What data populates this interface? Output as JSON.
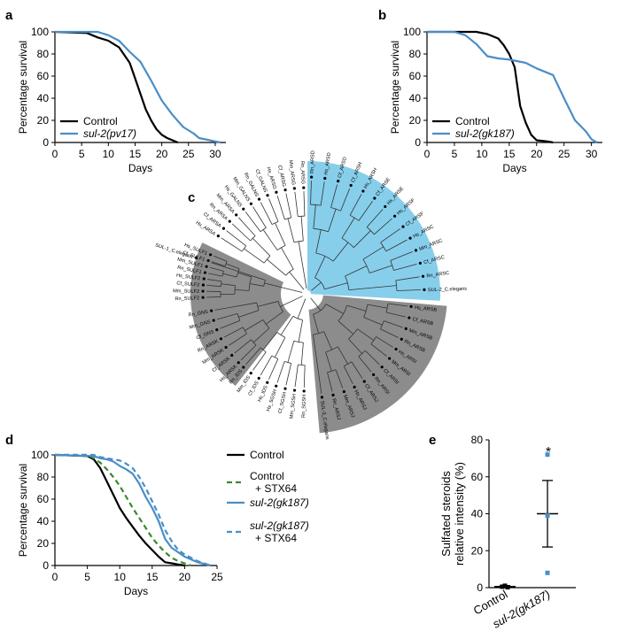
{
  "panels": {
    "a": "a",
    "b": "b",
    "c": "c",
    "d": "d",
    "e": "e"
  },
  "chart_data": [
    {
      "panel": "a",
      "type": "line",
      "xlabel": "Days",
      "ylabel": "Percentage survival",
      "xlim": [
        0,
        32
      ],
      "ylim": [
        0,
        100
      ],
      "xticks": [
        0,
        5,
        10,
        15,
        20,
        25,
        30
      ],
      "yticks": [
        0,
        20,
        40,
        60,
        80,
        100
      ],
      "legend_position": "lower-left",
      "series": [
        {
          "name": "Control",
          "color": "#000000",
          "x": [
            0,
            6,
            8,
            10,
            12,
            14,
            15,
            16,
            17,
            18,
            19,
            20,
            21,
            22,
            23
          ],
          "y": [
            100,
            99,
            95,
            92,
            86,
            72,
            58,
            44,
            30,
            20,
            12,
            7,
            4,
            2,
            0
          ]
        },
        {
          "name": "sul-2(pv17)",
          "color": "#4a8ec7",
          "x": [
            0,
            8,
            10,
            12,
            14,
            16,
            18,
            19,
            20,
            22,
            24,
            26,
            27,
            29,
            30,
            31
          ],
          "y": [
            100,
            100,
            97,
            92,
            82,
            73,
            56,
            47,
            38,
            25,
            14,
            8,
            4,
            2,
            1,
            0
          ]
        }
      ]
    },
    {
      "panel": "b",
      "type": "line",
      "xlabel": "Days",
      "ylabel": "Percentage survival",
      "xlim": [
        0,
        32
      ],
      "ylim": [
        0,
        100
      ],
      "xticks": [
        0,
        5,
        10,
        15,
        20,
        25,
        30
      ],
      "yticks": [
        0,
        20,
        40,
        60,
        80,
        100
      ],
      "legend_position": "lower-left",
      "series": [
        {
          "name": "Control",
          "color": "#000000",
          "x": [
            0,
            9,
            11,
            13,
            14,
            15,
            16,
            17,
            18,
            19,
            20,
            22,
            23
          ],
          "y": [
            100,
            100,
            98,
            94,
            88,
            80,
            68,
            33,
            18,
            7,
            2,
            1,
            0
          ]
        },
        {
          "name": "sul-2(gk187)",
          "color": "#4a8ec7",
          "x": [
            0,
            5,
            7,
            9,
            11,
            13,
            15,
            16,
            18,
            20,
            22,
            23,
            25,
            27,
            29,
            30,
            31
          ],
          "y": [
            100,
            100,
            97,
            89,
            78,
            76,
            75,
            74,
            72,
            67,
            63,
            61,
            40,
            20,
            10,
            3,
            0
          ]
        }
      ]
    },
    {
      "panel": "c",
      "type": "tree",
      "title": "",
      "blue_clade": [
        "Rn_ARSD",
        "Hs_ARSD",
        "Cf_ARSD",
        "Cf_ARSH",
        "Hs_ARSH",
        "Cf_ARSE",
        "Hs_ARSE",
        "Hs_ARSF",
        "Cf_ARSF",
        "Hs_ARSC",
        "Mm_ARSC",
        "Cf_ARSC",
        "Rn_ARSC",
        "SUL-2_C.elegans"
      ],
      "right_grey_clade": [
        "Hs_ARSB",
        "Cf_ARSB",
        "Mm_ARSB",
        "Rn_ARSB",
        "Hs_ARSI",
        "Mm_ARSI",
        "Cf_ARSI",
        "Rn_ARSI",
        "Cf_ARSJ",
        "Hs_ARSJ",
        "Mm_ARSJ",
        "Rn_ARSJ",
        "SUL-3_C.elegans"
      ],
      "left_grey_clade": [
        "SUL-1_C.elegans",
        "Rn_SULF2",
        "Mm_SULF2",
        "Cf_SULF2",
        "Hs_SULF2",
        "Rn_SULF1",
        "Mm_SULF1",
        "Cf_SULF1",
        "Hs_SULF1"
      ],
      "white_leaves": [
        "Rn_SGSH",
        "Mm_SGSH",
        "Cf_SGSH",
        "Hs_SGSH",
        "Hs_IDS",
        "Cf_IDS",
        "Mm_IDS",
        "Rn_IDS",
        "Hs_ARSK",
        "Cf_ARSK",
        "Mm_ARSK",
        "Rn_ARSK",
        "Cf_GNS",
        "Mm_GNS",
        "Rn_GNS",
        "Hs_ARSA",
        "Cf_ARSA",
        "Rn_ARSA",
        "Mm_ARSA",
        "Hs_GALNS",
        "Mm_GALNS",
        "Rn_GALNS",
        "Cf_GALNS",
        "Hs_ARSG",
        "Cf_ARSG",
        "Mm_ARSG",
        "Rn_ARSG"
      ]
    },
    {
      "panel": "d",
      "type": "line",
      "xlabel": "Days",
      "ylabel": "Percentage survival",
      "xlim": [
        0,
        25
      ],
      "ylim": [
        0,
        100
      ],
      "xticks": [
        0,
        5,
        10,
        15,
        20,
        25
      ],
      "yticks": [
        0,
        20,
        40,
        60,
        80,
        100
      ],
      "legend_position": "right",
      "series": [
        {
          "name": "Control",
          "color": "#000000",
          "dash": "solid",
          "x": [
            0,
            5,
            6,
            7,
            8,
            9,
            10,
            11,
            12,
            13,
            14,
            15,
            16,
            17,
            18,
            19,
            20
          ],
          "y": [
            100,
            99,
            96,
            88,
            76,
            64,
            52,
            43,
            35,
            27,
            20,
            14,
            8,
            3,
            2,
            1,
            0
          ]
        },
        {
          "name": "Control + STX64",
          "color": "#3a8a2e",
          "dash": "dashed",
          "x": [
            0,
            5,
            6,
            7,
            8,
            9,
            10,
            11,
            12,
            13,
            14,
            15,
            16,
            17,
            18,
            19,
            20,
            21
          ],
          "y": [
            100,
            100,
            97,
            93,
            87,
            80,
            72,
            62,
            52,
            43,
            34,
            25,
            18,
            12,
            7,
            4,
            2,
            0
          ]
        },
        {
          "name": "sul-2(gk187)",
          "color": "#4a8ec7",
          "dash": "solid",
          "x": [
            0,
            6,
            7,
            8,
            9,
            10,
            11,
            12,
            13,
            14,
            15,
            16,
            17,
            18,
            19,
            20,
            22,
            24
          ],
          "y": [
            100,
            99,
            97,
            96,
            94,
            90,
            87,
            83,
            74,
            62,
            52,
            40,
            24,
            16,
            12,
            8,
            3,
            0
          ]
        },
        {
          "name": "sul-2(gk187) + STX64",
          "color": "#4a8ec7",
          "dash": "dashed",
          "x": [
            0,
            6,
            7,
            8,
            9,
            10,
            11,
            12,
            13,
            14,
            15,
            16,
            17,
            18,
            19,
            20,
            22,
            24
          ],
          "y": [
            100,
            100,
            98,
            97,
            96,
            95,
            92,
            88,
            80,
            70,
            58,
            46,
            32,
            22,
            14,
            10,
            4,
            0
          ]
        }
      ]
    },
    {
      "panel": "e",
      "type": "scatter",
      "ylabel": "Sulfated steroids relative intensity (%)",
      "ylim": [
        0,
        80
      ],
      "yticks": [
        0,
        20,
        40,
        60,
        80
      ],
      "categories": [
        "Control",
        "sul-2(gk187)"
      ],
      "annotation": "*",
      "groups": [
        {
          "category": "Control",
          "color": "#000000",
          "points": [
            0.5,
            1.0,
            0.2
          ],
          "mean": 0.6,
          "error": [
            0.1,
            1.1
          ]
        },
        {
          "category": "sul-2(gk187)",
          "color": "#4a8ec7",
          "points": [
            72,
            39,
            8
          ],
          "mean": 40,
          "error": [
            22,
            58
          ]
        }
      ]
    }
  ]
}
